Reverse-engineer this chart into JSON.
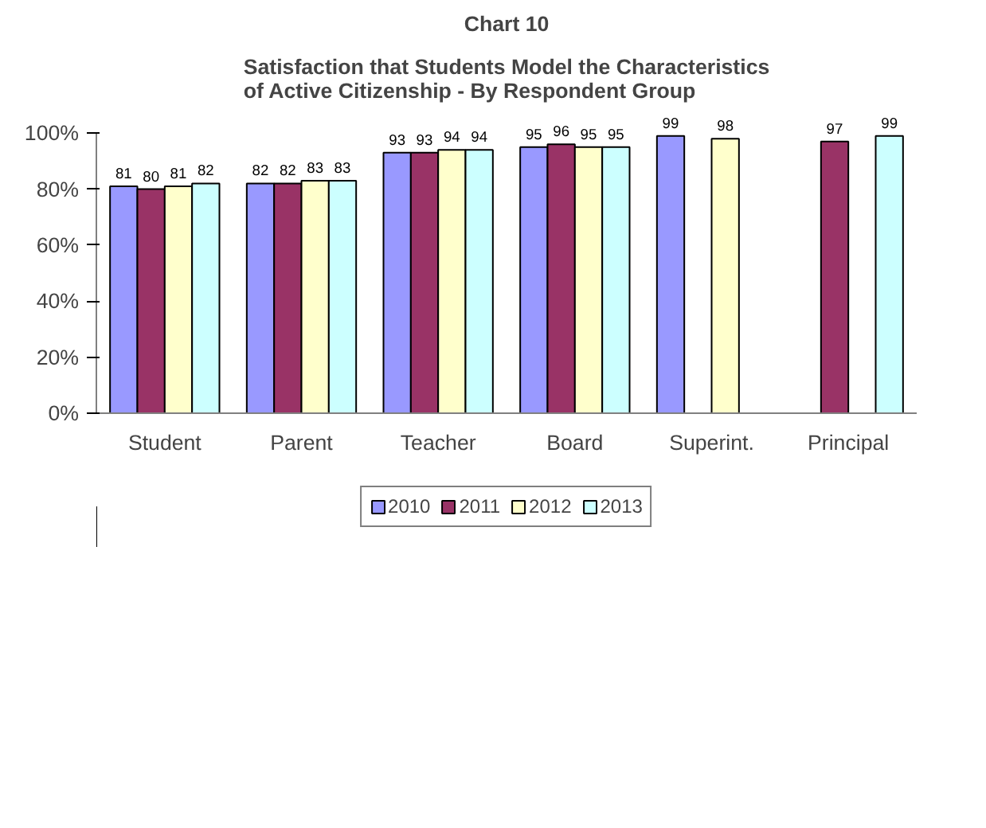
{
  "chart_data": {
    "type": "bar",
    "title": "Chart 10",
    "subtitle": "Satisfaction that Students Model the Characteristics of Active Citizenship - By Respondent Group",
    "categories": [
      "Student",
      "Parent",
      "Teacher",
      "Board",
      "Superint.",
      "Principal"
    ],
    "series": [
      {
        "name": "2010",
        "color": "#9999ff",
        "values": [
          81,
          82,
          93,
          95,
          99,
          null
        ]
      },
      {
        "name": "2011",
        "color": "#993366",
        "values": [
          80,
          82,
          93,
          96,
          null,
          97
        ]
      },
      {
        "name": "2012",
        "color": "#ffffcc",
        "values": [
          81,
          83,
          94,
          95,
          98,
          null
        ]
      },
      {
        "name": "2013",
        "color": "#ccffff",
        "values": [
          82,
          83,
          94,
          95,
          null,
          99
        ]
      }
    ],
    "ylim": [
      0,
      100
    ],
    "yticks": [
      {
        "value": 0,
        "label": "0%"
      },
      {
        "value": 20,
        "label": "20%"
      },
      {
        "value": 40,
        "label": "40%"
      },
      {
        "value": 60,
        "label": "60%"
      },
      {
        "value": 80,
        "label": "80%"
      },
      {
        "value": 100,
        "label": "100%"
      }
    ],
    "data_labels": true,
    "grid": false,
    "legend": "bottom"
  }
}
